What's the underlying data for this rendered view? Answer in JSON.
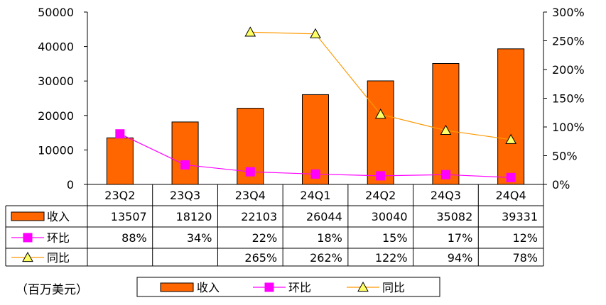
{
  "unit_label": "（百万美元）",
  "colors": {
    "bar": "#ff6600",
    "mom": "#ff00ff",
    "yoy_line": "#ff9900",
    "yoy_marker": "#ffff66"
  },
  "chart_data": {
    "type": "bar",
    "categories": [
      "23Q2",
      "23Q3",
      "23Q4",
      "24Q1",
      "24Q2",
      "24Q3",
      "24Q4"
    ],
    "ylim": [
      0,
      50000
    ],
    "y_ticks": [
      "0",
      "10000",
      "20000",
      "30000",
      "40000",
      "50000"
    ],
    "y2lim": [
      0,
      3
    ],
    "y2_ticks": [
      "0%",
      "50%",
      "100%",
      "150%",
      "200%",
      "250%",
      "300%"
    ],
    "series": [
      {
        "name": "收入",
        "type": "bar",
        "axis": "left",
        "values": [
          13507,
          18120,
          22103,
          26044,
          30040,
          35082,
          39331
        ],
        "labels": [
          "13507",
          "18120",
          "22103",
          "26044",
          "30040",
          "35082",
          "39331"
        ]
      },
      {
        "name": "环比",
        "type": "line",
        "axis": "right",
        "marker": "square",
        "values": [
          0.88,
          0.34,
          0.22,
          0.18,
          0.15,
          0.17,
          0.12
        ],
        "labels": [
          "88%",
          "34%",
          "22%",
          "18%",
          "15%",
          "17%",
          "12%"
        ]
      },
      {
        "name": "同比",
        "type": "line",
        "axis": "right",
        "marker": "triangle",
        "values": [
          null,
          null,
          2.65,
          2.62,
          1.22,
          0.94,
          0.78
        ],
        "labels": [
          "",
          "",
          "265%",
          "262%",
          "122%",
          "94%",
          "78%"
        ]
      }
    ],
    "legend": [
      "收入",
      "环比",
      "同比"
    ],
    "legend_position": "bottom",
    "grid": false
  }
}
